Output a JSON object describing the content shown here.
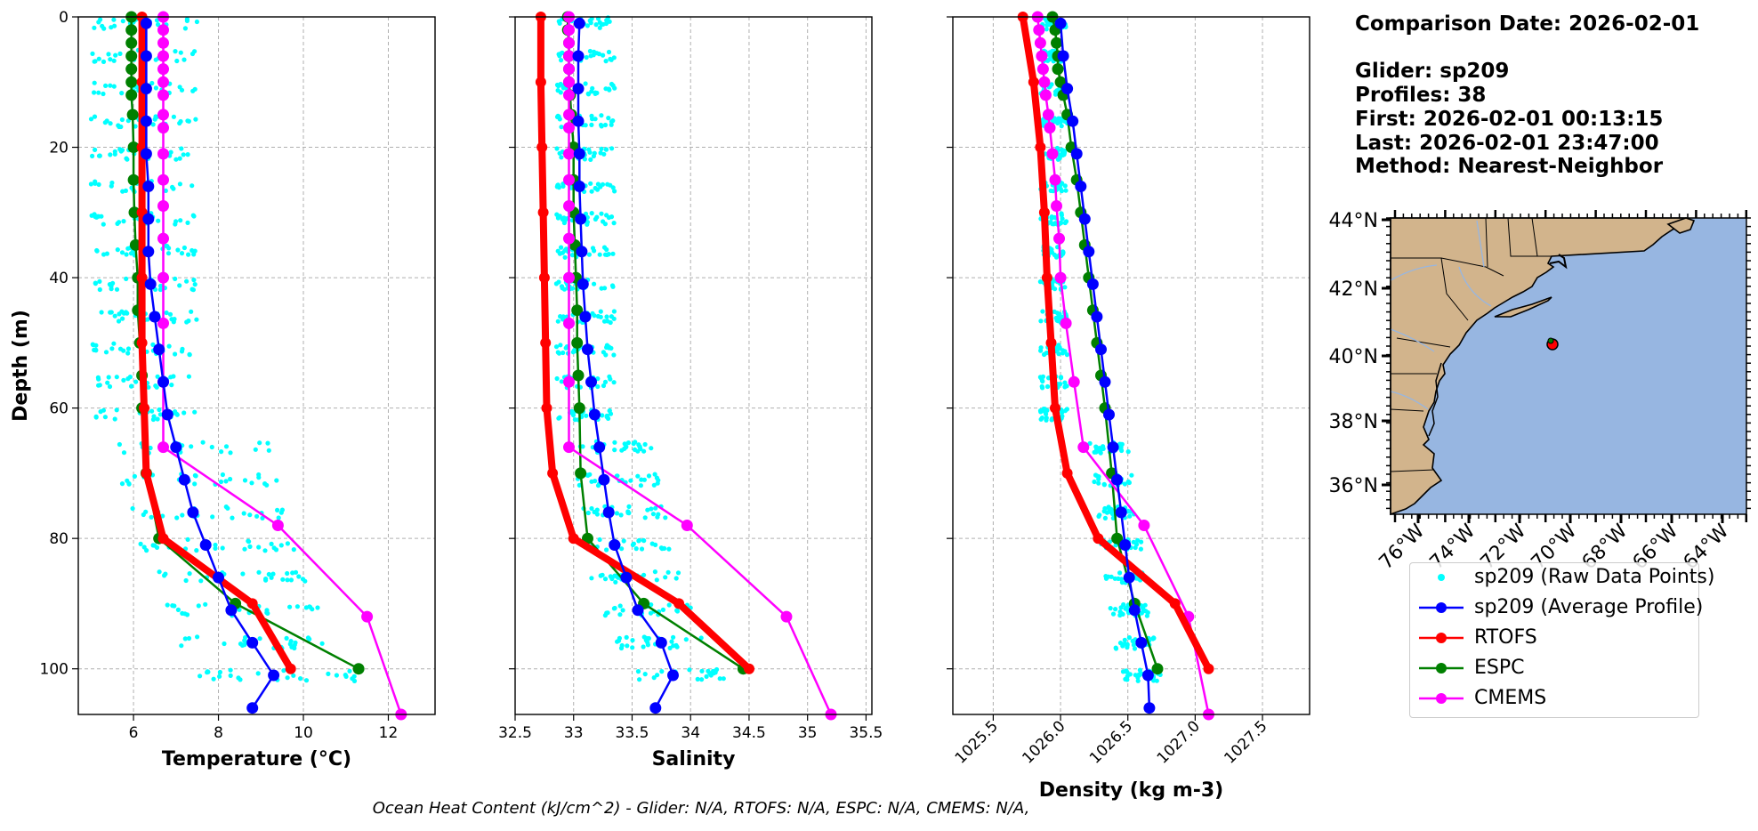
{
  "colors": {
    "raw": "#00ffff",
    "glider": "#0000ff",
    "rtofs": "#ff0000",
    "espc": "#008000",
    "cmems": "#ff00ff",
    "land": "#d2b48c",
    "ocean": "#97b6e1",
    "grid": "#b0b0b0"
  },
  "info": {
    "comparison_date": "Comparison Date: 2026-02-01",
    "glider": "Glider: sp209",
    "profiles": "Profiles: 38",
    "first": "First: 2026-02-01 00:13:15",
    "last": "Last: 2026-02-01 23:47:00",
    "method": "Method: Nearest-Neighbor"
  },
  "footer": "Ocean Heat Content (kJ/cm^2) - Glider: N/A,  RTOFS: N/A,  ESPC: N/A,  CMEMS: N/A,",
  "legend": [
    {
      "key": "raw",
      "label": "sp209 (Raw Data Points)",
      "style": "dot",
      "color": "#00ffff"
    },
    {
      "key": "glider",
      "label": "sp209 (Average Profile)",
      "style": "line",
      "color": "#0000ff"
    },
    {
      "key": "rtofs",
      "label": "RTOFS",
      "style": "line",
      "color": "#ff0000"
    },
    {
      "key": "espc",
      "label": "ESPC",
      "style": "line",
      "color": "#008000"
    },
    {
      "key": "cmems",
      "label": "CMEMS",
      "style": "line",
      "color": "#ff00ff"
    }
  ],
  "chart_data": [
    {
      "type": "line",
      "xlabel": "Temperature (°C)",
      "ylabel": "Depth (m)",
      "xlim": [
        4.7,
        13.1
      ],
      "ylim": [
        107,
        0
      ],
      "xticks": [
        6,
        8,
        10,
        12
      ],
      "yticks": [
        0,
        20,
        40,
        60,
        80,
        100
      ],
      "grid": true,
      "raw_spread": [
        5.0,
        7.5
      ],
      "series": [
        {
          "name": "sp209 (Average Profile)",
          "key": "glider",
          "depth": [
            1,
            6,
            11,
            16,
            21,
            26,
            31,
            36,
            41,
            46,
            51,
            56,
            61,
            66,
            71,
            76,
            81,
            86,
            91,
            96,
            101,
            106
          ],
          "values": [
            6.3,
            6.3,
            6.3,
            6.3,
            6.3,
            6.35,
            6.35,
            6.35,
            6.4,
            6.5,
            6.6,
            6.7,
            6.8,
            7.0,
            7.2,
            7.4,
            7.7,
            8.0,
            8.3,
            8.8,
            9.3,
            8.8
          ]
        },
        {
          "name": "RTOFS",
          "key": "rtofs",
          "depth": [
            0,
            10,
            20,
            30,
            40,
            50,
            60,
            70,
            80,
            90,
            100
          ],
          "values": [
            6.2,
            6.2,
            6.2,
            6.2,
            6.2,
            6.2,
            6.25,
            6.3,
            6.7,
            8.8,
            9.7
          ]
        },
        {
          "name": "ESPC",
          "key": "espc",
          "depth": [
            0,
            2,
            4,
            6,
            8,
            10,
            12,
            15,
            20,
            25,
            30,
            35,
            40,
            45,
            50,
            55,
            60,
            70,
            80,
            90,
            100
          ],
          "values": [
            5.95,
            5.95,
            5.95,
            5.95,
            5.95,
            5.95,
            5.95,
            5.98,
            6.0,
            6.0,
            6.02,
            6.05,
            6.1,
            6.1,
            6.15,
            6.2,
            6.2,
            6.3,
            6.6,
            8.4,
            11.3
          ]
        },
        {
          "name": "CMEMS",
          "key": "cmems",
          "depth": [
            0,
            2,
            4,
            6,
            8,
            10,
            12,
            15,
            17,
            21,
            25,
            29,
            34,
            40,
            47,
            56,
            66,
            78,
            92,
            107
          ],
          "values": [
            6.7,
            6.7,
            6.7,
            6.7,
            6.7,
            6.7,
            6.7,
            6.7,
            6.7,
            6.7,
            6.7,
            6.7,
            6.7,
            6.7,
            6.7,
            6.7,
            6.7,
            9.4,
            11.5,
            12.3
          ]
        }
      ]
    },
    {
      "type": "line",
      "xlabel": "Salinity",
      "ylabel": "",
      "xlim": [
        32.5,
        35.55
      ],
      "ylim": [
        107,
        0
      ],
      "xticks": [
        32.5,
        33.0,
        33.5,
        34.0,
        34.5,
        35.0,
        35.5
      ],
      "yticks": [
        0,
        20,
        40,
        60,
        80,
        100
      ],
      "grid": true,
      "raw_spread": [
        32.85,
        33.35
      ],
      "series": [
        {
          "name": "sp209 (Average Profile)",
          "key": "glider",
          "depth": [
            1,
            6,
            11,
            16,
            21,
            26,
            31,
            36,
            41,
            46,
            51,
            56,
            61,
            66,
            71,
            76,
            81,
            86,
            91,
            96,
            101,
            106
          ],
          "values": [
            33.05,
            33.04,
            33.04,
            33.04,
            33.05,
            33.05,
            33.06,
            33.07,
            33.08,
            33.1,
            33.12,
            33.15,
            33.18,
            33.22,
            33.26,
            33.3,
            33.35,
            33.45,
            33.55,
            33.75,
            33.85,
            33.7
          ]
        },
        {
          "name": "RTOFS",
          "key": "rtofs",
          "depth": [
            0,
            10,
            20,
            30,
            40,
            50,
            60,
            70,
            80,
            90,
            100
          ],
          "values": [
            32.72,
            32.72,
            32.73,
            32.74,
            32.75,
            32.76,
            32.77,
            32.82,
            33.0,
            33.9,
            34.5
          ]
        },
        {
          "name": "ESPC",
          "key": "espc",
          "depth": [
            0,
            2,
            4,
            6,
            8,
            10,
            12,
            15,
            20,
            25,
            30,
            35,
            40,
            45,
            50,
            55,
            60,
            70,
            80,
            90,
            100
          ],
          "values": [
            32.95,
            32.95,
            32.96,
            32.96,
            32.96,
            32.96,
            32.97,
            32.98,
            33.0,
            33.0,
            33.0,
            33.01,
            33.02,
            33.03,
            33.03,
            33.04,
            33.05,
            33.06,
            33.12,
            33.6,
            34.45
          ]
        },
        {
          "name": "CMEMS",
          "key": "cmems",
          "depth": [
            0,
            2,
            4,
            6,
            8,
            10,
            12,
            15,
            17,
            21,
            25,
            29,
            34,
            40,
            47,
            56,
            66,
            78,
            92,
            107
          ],
          "values": [
            32.96,
            32.96,
            32.96,
            32.96,
            32.96,
            32.96,
            32.96,
            32.96,
            32.96,
            32.96,
            32.96,
            32.96,
            32.96,
            32.96,
            32.96,
            32.96,
            32.96,
            33.97,
            34.82,
            35.2
          ]
        }
      ]
    },
    {
      "type": "line",
      "xlabel": "Density (kg m-3)",
      "ylabel": "",
      "xlim": [
        1025.2,
        1027.85
      ],
      "ylim": [
        107,
        0
      ],
      "xticks": [
        1025.5,
        1026.0,
        1026.5,
        1027.0,
        1027.5
      ],
      "yticks": [
        0,
        20,
        40,
        60,
        80,
        100
      ],
      "grid": true,
      "raw_spread": [
        1025.85,
        1026.05
      ],
      "series": [
        {
          "name": "sp209 (Average Profile)",
          "key": "glider",
          "depth": [
            1,
            6,
            11,
            16,
            21,
            26,
            31,
            36,
            41,
            46,
            51,
            56,
            61,
            66,
            71,
            76,
            81,
            86,
            91,
            96,
            101,
            106
          ],
          "values": [
            1026.0,
            1026.02,
            1026.05,
            1026.09,
            1026.12,
            1026.15,
            1026.18,
            1026.21,
            1026.24,
            1026.27,
            1026.3,
            1026.33,
            1026.36,
            1026.39,
            1026.42,
            1026.45,
            1026.48,
            1026.51,
            1026.55,
            1026.6,
            1026.65,
            1026.66
          ]
        },
        {
          "name": "RTOFS",
          "key": "rtofs",
          "depth": [
            0,
            10,
            20,
            30,
            40,
            50,
            60,
            70,
            80,
            90,
            100
          ],
          "values": [
            1025.72,
            1025.8,
            1025.85,
            1025.88,
            1025.9,
            1025.93,
            1025.96,
            1026.05,
            1026.28,
            1026.85,
            1027.1
          ]
        },
        {
          "name": "ESPC",
          "key": "espc",
          "depth": [
            0,
            2,
            4,
            6,
            8,
            10,
            12,
            15,
            20,
            25,
            30,
            35,
            40,
            45,
            50,
            55,
            60,
            70,
            80,
            90,
            100
          ],
          "values": [
            1025.94,
            1025.96,
            1025.97,
            1025.98,
            1025.98,
            1026.0,
            1026.02,
            1026.05,
            1026.08,
            1026.12,
            1026.15,
            1026.18,
            1026.21,
            1026.24,
            1026.27,
            1026.3,
            1026.33,
            1026.38,
            1026.42,
            1026.55,
            1026.72
          ]
        },
        {
          "name": "CMEMS",
          "key": "cmems",
          "depth": [
            0,
            2,
            4,
            6,
            8,
            10,
            12,
            15,
            17,
            21,
            25,
            29,
            34,
            40,
            47,
            56,
            66,
            78,
            92,
            107
          ],
          "values": [
            1025.83,
            1025.84,
            1025.85,
            1025.86,
            1025.87,
            1025.88,
            1025.89,
            1025.91,
            1025.92,
            1025.94,
            1025.96,
            1025.97,
            1025.99,
            1026.0,
            1026.04,
            1026.1,
            1026.17,
            1026.62,
            1026.95,
            1027.1
          ]
        }
      ]
    }
  ],
  "map": {
    "lat_ticks": [
      "44°N",
      "42°N",
      "40°N",
      "38°N",
      "36°N"
    ],
    "lon_ticks": [
      "76°W",
      "74°W",
      "72°W",
      "70°W",
      "68°W",
      "66°W",
      "64°W"
    ],
    "marker_color": "#ff0000"
  }
}
